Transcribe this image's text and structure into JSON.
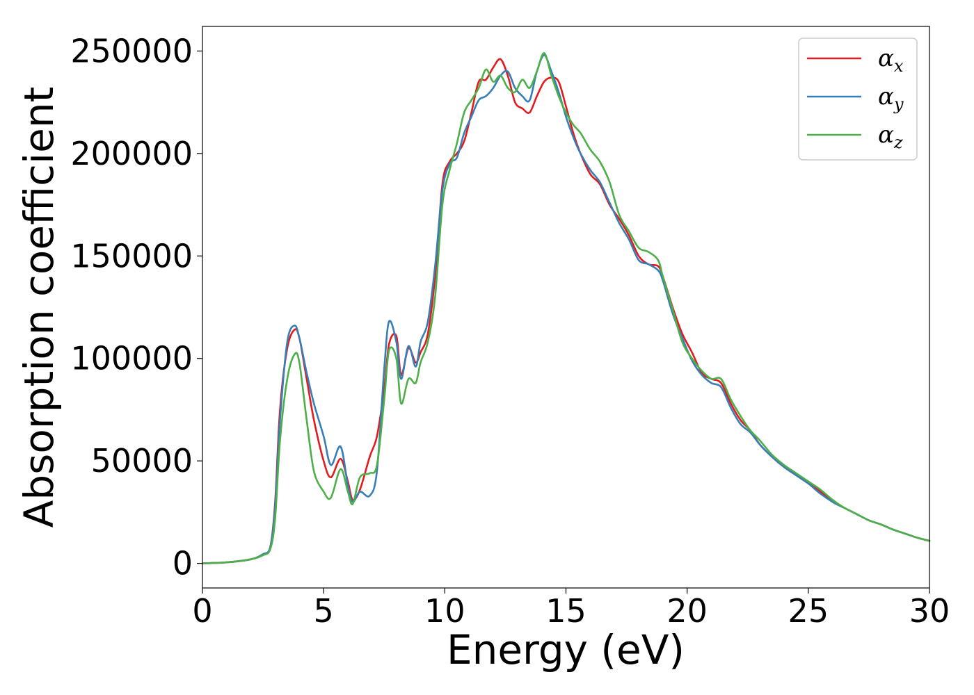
{
  "chart_data": {
    "type": "line",
    "title": "",
    "xlabel": "Energy (eV)",
    "ylabel": "Absorption coefficient",
    "xlim": [
      0,
      30
    ],
    "ylim": [
      -12000,
      262000
    ],
    "xticks": [
      0,
      5,
      10,
      15,
      20,
      25,
      30
    ],
    "xtick_labels": [
      "0",
      "5",
      "10",
      "15",
      "20",
      "25",
      "30"
    ],
    "yticks": [
      0,
      50000,
      100000,
      150000,
      200000,
      250000
    ],
    "ytick_labels": [
      "0",
      "50000",
      "100000",
      "150000",
      "200000",
      "250000"
    ],
    "grid": false,
    "legend_position": "top-right",
    "series": [
      {
        "name": "αx",
        "symbol": "α",
        "subscript": "x",
        "color": "#e41a1c",
        "x": [
          0,
          1,
          2,
          2.5,
          2.8,
          3.0,
          3.2,
          3.5,
          3.8,
          4.0,
          4.3,
          4.6,
          5.0,
          5.3,
          5.7,
          6.0,
          6.2,
          6.5,
          6.9,
          7.2,
          7.5,
          7.7,
          8.0,
          8.2,
          8.5,
          8.8,
          9.0,
          9.3,
          9.6,
          9.9,
          10.2,
          10.5,
          10.8,
          11.1,
          11.4,
          11.7,
          12.0,
          12.3,
          12.6,
          12.9,
          13.2,
          13.5,
          13.8,
          14.1,
          14.4,
          14.7,
          15.0,
          15.3,
          15.6,
          16.0,
          16.4,
          16.8,
          17.2,
          17.6,
          18.0,
          18.4,
          18.8,
          19.0,
          19.4,
          19.8,
          20.2,
          20.6,
          21.0,
          21.4,
          21.8,
          22.2,
          22.6,
          23.0,
          23.5,
          24.0,
          24.5,
          25.0,
          25.5,
          26.0,
          26.5,
          27.0,
          27.5,
          28.0,
          28.5,
          29.0,
          29.5,
          30.0
        ],
        "y": [
          0,
          500,
          2000,
          4500,
          8000,
          30000,
          75000,
          105000,
          114000,
          110000,
          90000,
          70000,
          50000,
          42000,
          51000,
          40000,
          31000,
          36000,
          52000,
          62000,
          85000,
          107000,
          111000,
          92000,
          105000,
          98000,
          103000,
          112000,
          140000,
          185000,
          196000,
          200000,
          206000,
          220000,
          235000,
          236000,
          242000,
          246000,
          238000,
          225000,
          222000,
          220000,
          228000,
          235000,
          237000,
          235000,
          223000,
          210000,
          200000,
          190000,
          185000,
          175000,
          168000,
          160000,
          150000,
          146000,
          145000,
          140000,
          125000,
          112000,
          103000,
          93000,
          90000,
          88000,
          78000,
          70000,
          65000,
          58000,
          52000,
          47000,
          43000,
          39000,
          35000,
          30000,
          27000,
          24000,
          21000,
          19000,
          16500,
          14500,
          12500,
          11000
        ]
      },
      {
        "name": "αy",
        "symbol": "α",
        "subscript": "y",
        "color": "#377eb8",
        "x": [
          0,
          1,
          2,
          2.5,
          2.8,
          3.0,
          3.2,
          3.5,
          3.8,
          4.0,
          4.3,
          4.6,
          5.0,
          5.3,
          5.7,
          6.0,
          6.2,
          6.5,
          6.9,
          7.2,
          7.5,
          7.7,
          8.0,
          8.2,
          8.5,
          8.8,
          9.0,
          9.3,
          9.6,
          9.9,
          10.2,
          10.5,
          10.8,
          11.1,
          11.4,
          11.7,
          12.0,
          12.3,
          12.6,
          12.9,
          13.2,
          13.5,
          13.8,
          14.1,
          14.4,
          14.7,
          15.0,
          15.3,
          15.6,
          16.0,
          16.4,
          16.8,
          17.2,
          17.6,
          18.0,
          18.4,
          18.8,
          19.0,
          19.4,
          19.8,
          20.2,
          20.6,
          21.0,
          21.4,
          21.8,
          22.2,
          22.6,
          23.0,
          23.5,
          24.0,
          24.5,
          25.0,
          25.5,
          26.0,
          26.5,
          27.0,
          27.5,
          28.0,
          28.5,
          29.0,
          29.5,
          30.0
        ],
        "y": [
          0,
          500,
          2000,
          4500,
          8000,
          28000,
          70000,
          108000,
          116000,
          110000,
          93000,
          78000,
          62000,
          48000,
          57000,
          38000,
          30000,
          35000,
          33000,
          45000,
          95000,
          118000,
          108000,
          90000,
          106000,
          96000,
          108000,
          118000,
          145000,
          182000,
          195000,
          198000,
          210000,
          218000,
          226000,
          228000,
          232000,
          238000,
          240000,
          232000,
          228000,
          226000,
          240000,
          248000,
          240000,
          230000,
          218000,
          208000,
          200000,
          192000,
          186000,
          176000,
          166000,
          158000,
          148000,
          146000,
          143000,
          138000,
          122000,
          110000,
          99000,
          92000,
          88000,
          86000,
          76000,
          68000,
          64000,
          58000,
          52000,
          47000,
          43000,
          39000,
          34000,
          30000,
          27000,
          24000,
          21000,
          19000,
          16500,
          14500,
          12500,
          11000
        ]
      },
      {
        "name": "αz",
        "symbol": "α",
        "subscript": "z",
        "color": "#4daf4a",
        "x": [
          0,
          1,
          2,
          2.5,
          2.8,
          3.0,
          3.2,
          3.5,
          3.8,
          4.0,
          4.3,
          4.6,
          5.0,
          5.3,
          5.7,
          6.0,
          6.2,
          6.5,
          6.9,
          7.2,
          7.5,
          7.7,
          8.0,
          8.2,
          8.5,
          8.8,
          9.0,
          9.3,
          9.6,
          9.9,
          10.2,
          10.5,
          10.8,
          11.1,
          11.4,
          11.7,
          12.0,
          12.3,
          12.6,
          12.9,
          13.2,
          13.5,
          13.8,
          14.1,
          14.4,
          14.7,
          15.0,
          15.3,
          15.6,
          16.0,
          16.4,
          16.8,
          17.2,
          17.6,
          18.0,
          18.4,
          18.8,
          19.0,
          19.4,
          19.8,
          20.2,
          20.6,
          21.0,
          21.4,
          21.8,
          22.2,
          22.6,
          23.0,
          23.5,
          24.0,
          24.5,
          25.0,
          25.5,
          26.0,
          26.5,
          27.0,
          27.5,
          28.0,
          28.5,
          29.0,
          29.5,
          30.0
        ],
        "y": [
          0,
          500,
          2000,
          4000,
          7000,
          22000,
          60000,
          90000,
          102000,
          98000,
          70000,
          45000,
          35000,
          32000,
          46000,
          35000,
          29000,
          42000,
          44000,
          48000,
          80000,
          104000,
          100000,
          78000,
          90000,
          88000,
          98000,
          108000,
          130000,
          175000,
          192000,
          205000,
          220000,
          226000,
          232000,
          241000,
          235000,
          238000,
          232000,
          230000,
          236000,
          232000,
          240000,
          249000,
          238000,
          228000,
          220000,
          214000,
          210000,
          202000,
          196000,
          186000,
          170000,
          162000,
          154000,
          152000,
          148000,
          140000,
          124000,
          108000,
          100000,
          94000,
          90000,
          90000,
          80000,
          72000,
          65000,
          60000,
          53000,
          48000,
          44000,
          40000,
          36000,
          31000,
          27000,
          24000,
          21000,
          19000,
          16500,
          14500,
          12500,
          11000
        ]
      }
    ]
  }
}
